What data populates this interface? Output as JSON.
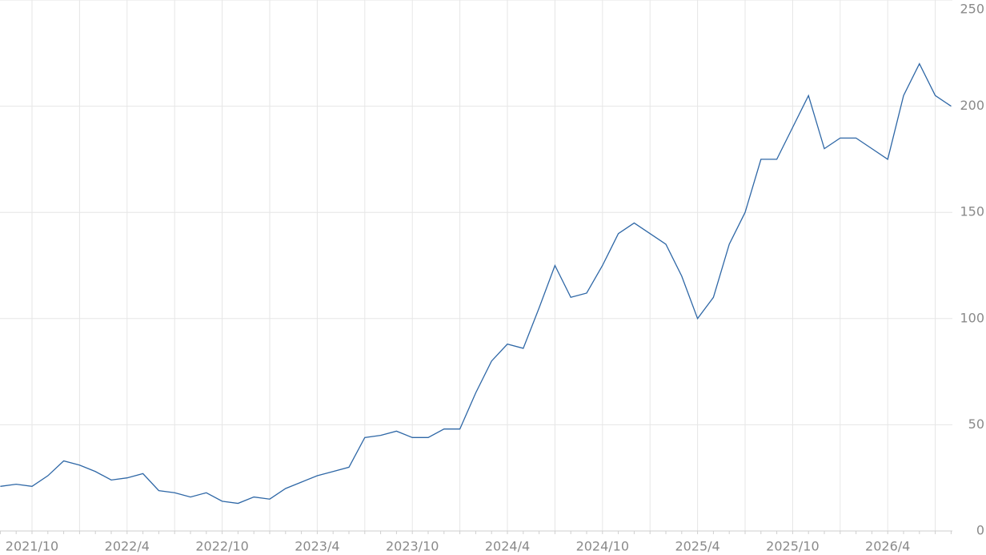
{
  "chart_data": {
    "type": "line",
    "categories": [
      null,
      null,
      "2021/10",
      null,
      null,
      null,
      null,
      null,
      "2022/4",
      null,
      null,
      null,
      null,
      null,
      "2022/10",
      null,
      null,
      null,
      null,
      null,
      "2023/4",
      null,
      null,
      null,
      null,
      null,
      "2023/10",
      null,
      null,
      null,
      null,
      null,
      "2024/4",
      null,
      null,
      null,
      null,
      null,
      "2024/10",
      null,
      null,
      null,
      null,
      null,
      "2025/4",
      null,
      null,
      null,
      null,
      null,
      "2025/10",
      null,
      null,
      null,
      null,
      null,
      "2026/4",
      null,
      null,
      null,
      null
    ],
    "series": [
      {
        "color": "#2e67a6",
        "values": [
          21,
          22,
          21,
          26,
          33,
          31,
          28,
          24,
          25,
          27,
          19,
          18,
          16,
          18,
          14,
          13,
          16,
          15,
          20,
          23,
          26,
          28,
          30,
          44,
          45,
          47,
          44,
          44,
          48,
          48,
          65,
          80,
          88,
          86,
          105,
          125,
          110,
          112,
          125,
          140,
          145,
          140,
          135,
          120,
          100,
          110,
          135,
          150,
          175,
          175,
          190,
          205,
          180,
          185,
          185,
          180,
          175,
          205,
          220,
          205,
          200
        ]
      }
    ],
    "ylim": [
      0,
      250
    ],
    "yticks": [
      0,
      50,
      100,
      150,
      200,
      250
    ],
    "grid": true
  }
}
